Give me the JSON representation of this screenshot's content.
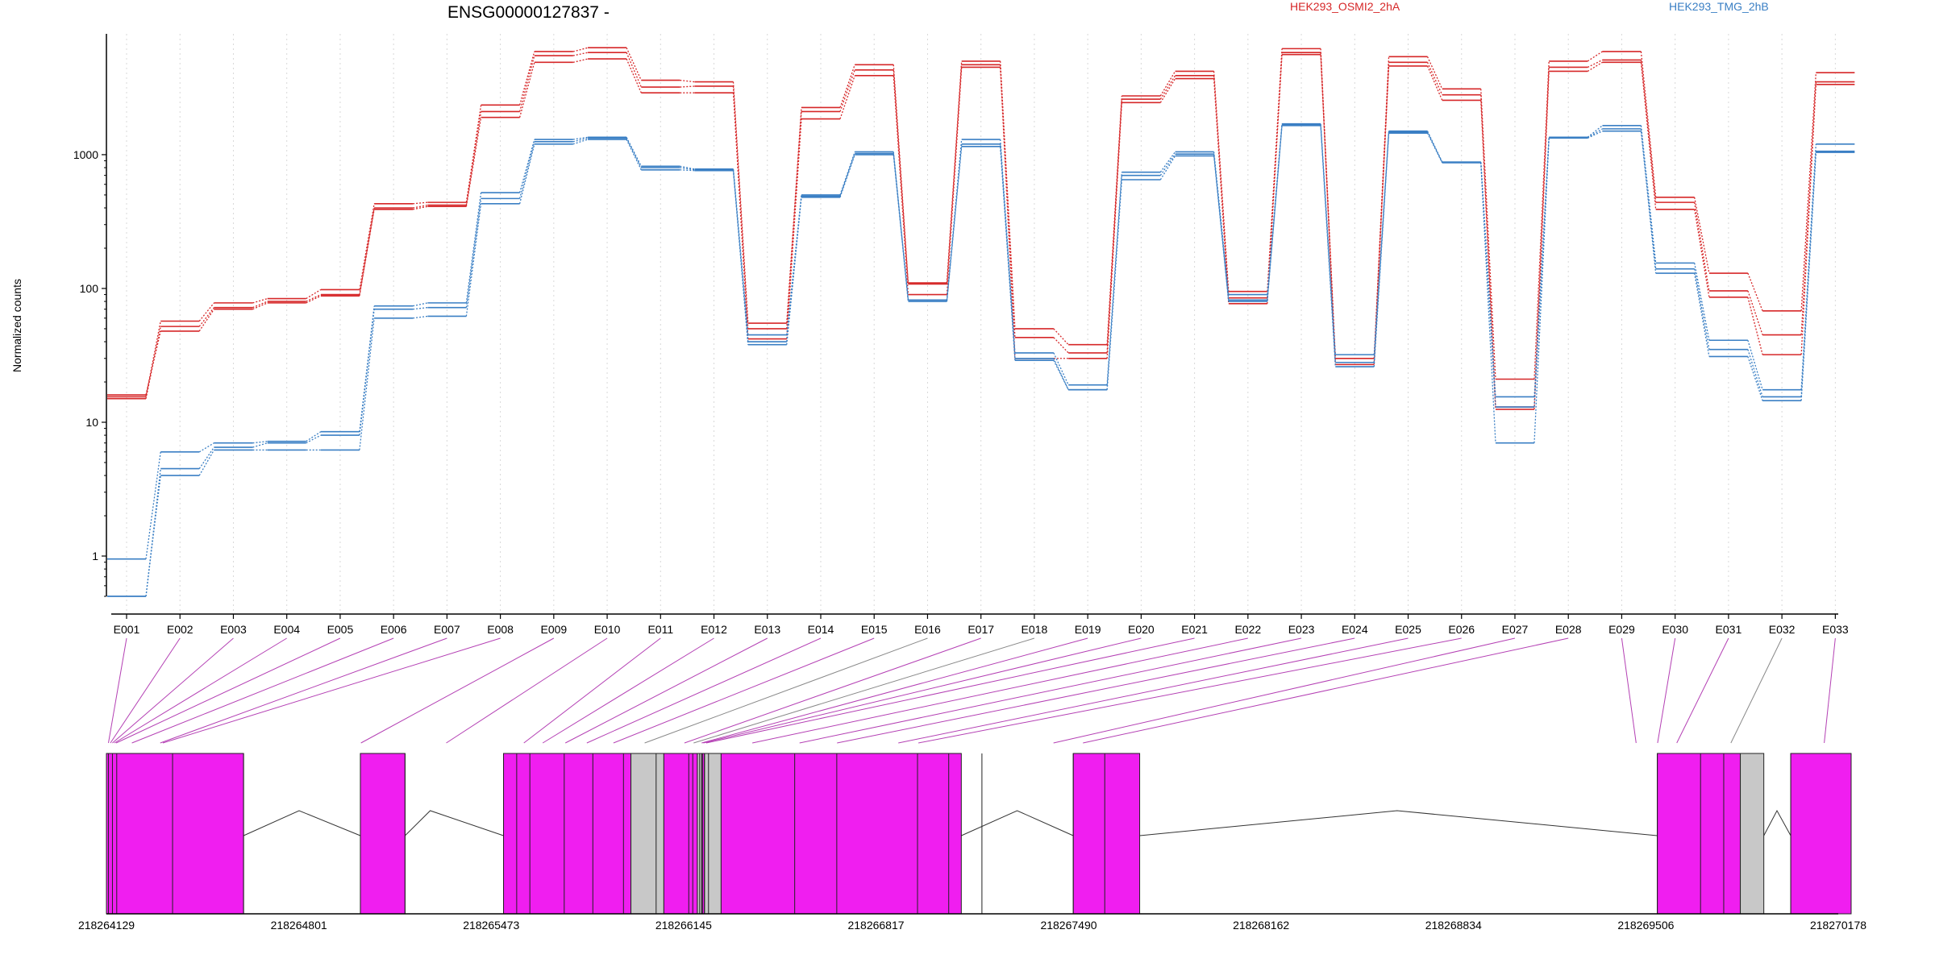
{
  "chart_data": {
    "type": "line",
    "title": "ENSG00000127837 -",
    "ylabel": "Normalized counts",
    "y_scale": "log",
    "ylim": [
      0.5,
      8000
    ],
    "y_ticks": [
      {
        "value": 1,
        "label": "1"
      },
      {
        "value": 10,
        "label": "10"
      },
      {
        "value": 100,
        "label": "100"
      },
      {
        "value": 1000,
        "label": "1000"
      }
    ],
    "grid": "vertical dotted",
    "legend_position": "top-right",
    "categories": [
      "E001",
      "E002",
      "E003",
      "E004",
      "E005",
      "E006",
      "E007",
      "E008",
      "E009",
      "E010",
      "E011",
      "E012",
      "E013",
      "E014",
      "E015",
      "E016",
      "E017",
      "E018",
      "E019",
      "E020",
      "E021",
      "E022",
      "E023",
      "E024",
      "E025",
      "E026",
      "E027",
      "E028",
      "E029",
      "E030",
      "E031",
      "E032",
      "E033"
    ],
    "conditions": [
      {
        "name": "HEK293_OSMI2_2hA",
        "color": "#d62728"
      },
      {
        "name": "HEK293_TMG_2hB",
        "color": "#3a7fc4"
      }
    ],
    "series": [
      {
        "condition": 0,
        "values": [
          15.5,
          57,
          78,
          84,
          98,
          430,
          440,
          2350,
          5900,
          6300,
          3600,
          3500,
          55,
          2250,
          4700,
          110,
          5000,
          50,
          38,
          2750,
          4200,
          95,
          6200,
          30,
          5400,
          3100,
          21,
          5000,
          5900,
          480,
          130,
          68,
          4100
        ]
      },
      {
        "condition": 0,
        "values": [
          15,
          52,
          72,
          80,
          90,
          400,
          420,
          2100,
          5500,
          5800,
          3200,
          3250,
          50,
          2100,
          4300,
          108,
          4700,
          43,
          33,
          2600,
          3900,
          85,
          5800,
          28,
          4900,
          2800,
          13,
          4500,
          5100,
          440,
          96,
          45,
          3500
        ]
      },
      {
        "condition": 0,
        "values": [
          16,
          48,
          70,
          78,
          88,
          390,
          410,
          1900,
          4900,
          5200,
          2900,
          2900,
          42,
          1850,
          3900,
          90,
          4500,
          30,
          30,
          2450,
          3700,
          77,
          5600,
          27,
          4600,
          2550,
          12.5,
          4200,
          4900,
          390,
          86,
          32,
          3350
        ]
      },
      {
        "condition": 1,
        "values": [
          0.95,
          6,
          7,
          7.2,
          8.5,
          74,
          78,
          520,
          1300,
          1350,
          820,
          780,
          45,
          500,
          1050,
          82,
          1300,
          33,
          19,
          740,
          1050,
          90,
          1700,
          32,
          1500,
          880,
          15.5,
          1350,
          1650,
          155,
          41,
          17.5,
          1200
        ]
      },
      {
        "condition": 1,
        "values": [
          0.5,
          4.5,
          6.5,
          7,
          8,
          70,
          72,
          470,
          1250,
          1330,
          800,
          770,
          40,
          490,
          1020,
          82,
          1200,
          30,
          17.5,
          700,
          1010,
          82,
          1680,
          28,
          1480,
          880,
          13,
          1340,
          1560,
          140,
          35,
          15.5,
          1060
        ]
      },
      {
        "condition": 1,
        "values": [
          0.5,
          4,
          6.2,
          6.2,
          6.2,
          60,
          62,
          430,
          1200,
          1300,
          770,
          760,
          38,
          480,
          1000,
          80,
          1150,
          29,
          17.5,
          650,
          980,
          80,
          1650,
          26,
          1450,
          870,
          7,
          1330,
          1500,
          130,
          31,
          14.5,
          1040
        ]
      }
    ],
    "genomic_axis": {
      "range": [
        218264129,
        218270178
      ],
      "tick_labels": [
        "218264129",
        "218264801",
        "218265473",
        "218266145",
        "218266817",
        "218267490",
        "218268162",
        "218268834",
        "218269506",
        "218270178"
      ]
    },
    "gene_model": {
      "exon_boundaries": [
        218264129,
        218264136,
        218264150,
        218264165,
        218264360,
        218264608,
        218265016,
        218265172,
        218265516,
        218265562,
        218265608,
        218265728,
        218265828,
        218265935,
        218266049,
        218266163,
        218266177,
        218266201,
        218266211,
        218266232,
        218266218,
        218266533,
        218266680,
        218266962,
        218267071,
        218267187,
        218267506,
        218267616,
        218269546,
        218269697,
        218269778,
        218270012
      ],
      "blocks": [
        {
          "start": 218264129,
          "end": 218264608,
          "state": "tested"
        },
        {
          "start": 218265016,
          "end": 218265172,
          "state": "tested"
        },
        {
          "start": 218265516,
          "end": 218265961,
          "state": "tested"
        },
        {
          "start": 218265961,
          "end": 218266076,
          "state": "untested"
        },
        {
          "start": 218266076,
          "end": 218266193,
          "state": "tested"
        },
        {
          "start": 218266193,
          "end": 218266208,
          "state": "untested"
        },
        {
          "start": 218266208,
          "end": 218266218,
          "state": "tested"
        },
        {
          "start": 218266218,
          "end": 218266276,
          "state": "untested"
        },
        {
          "start": 218266276,
          "end": 218267115,
          "state": "tested"
        },
        {
          "start": 218267506,
          "end": 218267738,
          "state": "tested"
        },
        {
          "start": 218269546,
          "end": 218269836,
          "state": "tested"
        },
        {
          "start": 218269836,
          "end": 218269918,
          "state": "untested"
        },
        {
          "start": 218270012,
          "end": 218270223,
          "state": "tested"
        }
      ],
      "introns": [
        {
          "start": 218264608,
          "end": 218265016,
          "apex": 218264802
        },
        {
          "start": 218265172,
          "end": 218265516,
          "apex": 218265260
        },
        {
          "start": 218267115,
          "end": 218267506,
          "apex": 218267310
        },
        {
          "start": 218267738,
          "end": 218269546,
          "apex": 218268637
        },
        {
          "start": 218269918,
          "end": 218270012,
          "apex": 218269964
        }
      ],
      "connector_targets": [
        {
          "pos": 218264136,
          "untested": false
        },
        {
          "pos": 218264143,
          "untested": false
        },
        {
          "pos": 218264150,
          "untested": false
        },
        {
          "pos": 218264157,
          "untested": false
        },
        {
          "pos": 218264163,
          "untested": false
        },
        {
          "pos": 218264218,
          "untested": false
        },
        {
          "pos": 218264317,
          "untested": false
        },
        {
          "pos": 218264326,
          "untested": false
        },
        {
          "pos": 218265018,
          "untested": false
        },
        {
          "pos": 218265316,
          "untested": false
        },
        {
          "pos": 218265587,
          "untested": false
        },
        {
          "pos": 218265653,
          "untested": false
        },
        {
          "pos": 218265732,
          "untested": false
        },
        {
          "pos": 218265807,
          "untested": false
        },
        {
          "pos": 218265900,
          "untested": false
        },
        {
          "pos": 218266009,
          "untested": true
        },
        {
          "pos": 218266148,
          "untested": false
        },
        {
          "pos": 218266180,
          "untested": true
        },
        {
          "pos": 218266208,
          "untested": false
        },
        {
          "pos": 218266214,
          "untested": false
        },
        {
          "pos": 218266224,
          "untested": false
        },
        {
          "pos": 218266385,
          "untested": false
        },
        {
          "pos": 218266550,
          "untested": false
        },
        {
          "pos": 218266681,
          "untested": false
        },
        {
          "pos": 218266895,
          "untested": false
        },
        {
          "pos": 218266965,
          "untested": false
        },
        {
          "pos": 218267437,
          "untested": false
        },
        {
          "pos": 218267540,
          "untested": false
        },
        {
          "pos": 218269472,
          "untested": false
        },
        {
          "pos": 218269547,
          "untested": false
        },
        {
          "pos": 218269614,
          "untested": false
        },
        {
          "pos": 218269803,
          "untested": true
        },
        {
          "pos": 218270129,
          "untested": false
        }
      ],
      "tested_color": "#f01ef0",
      "untested_color": "#c8c8c8",
      "connector_color": "#b440b4",
      "untested_connector_color": "#888888"
    }
  }
}
